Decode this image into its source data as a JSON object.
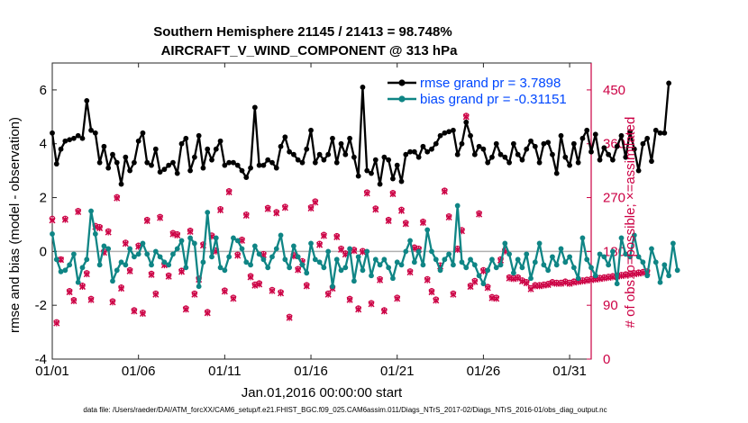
{
  "chart_data": {
    "type": "line",
    "title": "Southern Hemisphere 21145 / 21413 = 98.748%",
    "subtitle": "AIRCRAFT_V_WIND_COMPONENT @ 313 hPa",
    "xlabel": "Jan.01,2016 00:00:00 start",
    "ylabel": "rmse and bias (model - observation)",
    "ylabel_right": "# of obs: o=possible; ×=assimilated",
    "footer": "data file: /Users/raeder/DAI/ATM_forcXX/CAM6_setup/f.e21.FHIST_BGC.f09_025.CAM6assim.011/Diags_NTrS_2017-02/Diags_NTrS_2016-01/obs_diag_output.nc",
    "xlim": [
      0.0,
      31.25
    ],
    "ylim": [
      -4,
      7
    ],
    "ylim_right": [
      0,
      495
    ],
    "xticks": [
      0,
      5,
      10,
      15,
      20,
      25,
      30
    ],
    "xtick_labels": [
      "01/01",
      "01/06",
      "01/11",
      "01/16",
      "01/21",
      "01/26",
      "01/31"
    ],
    "yticks": [
      -4,
      -2,
      0,
      2,
      4,
      6
    ],
    "ytick_labels": [
      "-4",
      "-2",
      "0",
      "2",
      "4",
      "6"
    ],
    "yticks_right": [
      0,
      90,
      180,
      270,
      360,
      450
    ],
    "ytick_labels_right": [
      "0",
      "90",
      "180",
      "270",
      "360",
      "450"
    ],
    "legend_position": "top-right",
    "x_step_days": 0.25,
    "series": [
      {
        "name": "rmse grand pr = 3.7898",
        "color": "#000000",
        "axis": "left",
        "values": [
          4.4,
          3.25,
          3.8,
          4.1,
          4.15,
          4.2,
          4.3,
          4.2,
          5.6,
          4.5,
          4.4,
          3.3,
          3.9,
          3.1,
          3.6,
          3.3,
          2.5,
          3.5,
          3.0,
          3.3,
          4.1,
          4.4,
          3.3,
          3.2,
          3.8,
          2.95,
          3.05,
          3.2,
          3.3,
          2.9,
          4.0,
          4.2,
          3.0,
          3.5,
          4.3,
          3.1,
          3.8,
          3.4,
          3.8,
          4.1,
          3.2,
          3.3,
          3.3,
          3.2,
          3.0,
          2.75,
          3.1,
          5.35,
          3.2,
          3.2,
          3.4,
          3.3,
          3.1,
          3.9,
          4.25,
          3.7,
          3.6,
          3.4,
          3.3,
          3.8,
          4.5,
          3.3,
          3.6,
          3.4,
          3.6,
          4.2,
          3.3,
          4.0,
          3.6,
          4.2,
          3.5,
          2.8,
          6.1,
          3.0,
          2.9,
          3.4,
          2.5,
          3.5,
          3.4,
          2.7,
          3.2,
          2.6,
          3.6,
          3.7,
          3.7,
          3.5,
          3.9,
          3.7,
          3.8,
          4.0,
          4.3,
          4.4,
          4.45,
          4.5,
          3.6,
          4.0,
          4.8,
          4.3,
          3.6,
          3.9,
          3.8,
          3.3,
          3.5,
          4.0,
          3.6,
          3.5,
          3.3,
          4.0,
          3.6,
          3.4,
          3.8,
          4.1,
          3.9,
          3.3,
          4.0,
          4.05,
          3.6,
          2.9,
          4.3,
          3.5,
          3.2,
          4.0,
          3.3,
          4.2,
          4.5,
          3.7,
          4.35,
          3.4,
          3.85,
          3.6,
          3.4,
          3.9,
          4.3,
          3.5,
          4.45,
          3.8,
          3.0,
          4.0,
          4.2,
          3.35,
          4.5,
          4.4,
          4.4,
          6.25
        ]
      },
      {
        "name": "bias grand pr = -0.31151",
        "color": "#0f8585",
        "axis": "left",
        "values": [
          0.65,
          -0.3,
          -0.75,
          -0.7,
          -0.5,
          -0.1,
          -1.15,
          -0.6,
          -0.3,
          1.5,
          0.65,
          -0.5,
          0.2,
          0.1,
          -1.1,
          -0.7,
          -0.4,
          -0.5,
          0.1,
          -0.2,
          -0.1,
          0.3,
          -0.1,
          -0.5,
          0.0,
          -0.2,
          -0.4,
          -0.5,
          -0.1,
          0.1,
          0.4,
          -0.6,
          0.5,
          0.3,
          -1.3,
          -0.4,
          1.45,
          -0.2,
          0.5,
          -0.6,
          -0.7,
          -0.2,
          0.5,
          0.4,
          0.1,
          -0.4,
          -0.5,
          0.2,
          -0.1,
          -0.3,
          -0.6,
          -0.2,
          0.1,
          0.6,
          -0.3,
          -0.6,
          0.2,
          -0.2,
          -0.5,
          -0.8,
          0.3,
          -0.3,
          -0.4,
          -0.6,
          0.0,
          -1.3,
          -0.3,
          -0.7,
          -0.6,
          0.1,
          -1.1,
          -0.2,
          -0.7,
          0.0,
          -0.9,
          -0.3,
          -0.5,
          -0.3,
          -0.6,
          -1.0,
          -0.4,
          -0.5,
          0.0,
          0.4,
          -0.4,
          0.0,
          -0.5,
          0.8,
          0.0,
          -0.3,
          -0.7,
          -0.3,
          -0.1,
          -0.5,
          1.7,
          -0.4,
          -0.6,
          -0.3,
          -0.5,
          -0.9,
          -1.2,
          -0.7,
          -0.3,
          -0.6,
          -0.5,
          0.3,
          -0.1,
          -0.8,
          -0.3,
          -0.6,
          -0.1,
          -1.0,
          -0.4,
          0.3,
          -0.5,
          -0.7,
          -0.2,
          -0.5,
          0.1,
          -0.4,
          -0.2,
          -0.6,
          -1.0,
          0.5,
          -0.3,
          -0.6,
          -0.9,
          -0.1,
          -0.2,
          -0.5,
          0.0,
          -1.2,
          0.5,
          -0.1,
          -0.2,
          0.6,
          -0.2,
          -0.4,
          -0.9,
          0.1,
          -0.4,
          -1.15,
          -0.5,
          -0.9,
          0.3,
          -0.7
        ]
      },
      {
        "name": "possible",
        "color": "#cc0044",
        "axis": "right",
        "marker": "o",
        "values": [
          235,
          62,
          167,
          235,
          114,
          99,
          248,
          123,
          144,
          101,
          223,
          221,
          180,
          214,
          97,
          271,
          120,
          195,
          149,
          82,
          190,
          78,
          233,
          143,
          110,
          238,
          159,
          140,
          211,
          209,
          148,
          85,
          215,
          110,
          135,
          192,
          79,
          207,
          182,
          251,
          115,
          281,
          103,
          175,
          200,
          242,
          139,
          125,
          127,
          176,
          253,
          116,
          246,
          112,
          255,
          71,
          174,
          151,
          164,
          124,
          254,
          264,
          193,
          208,
          110,
          120,
          206,
          185,
          177,
          101,
          183,
          85,
          181,
          279,
          94,
          252,
          134,
          82,
          233,
          278,
          103,
          250,
          228,
          147,
          187,
          185,
          230,
          134,
          114,
          100,
          157,
          282,
          239,
          110,
          185,
          216,
          407,
          123,
          131,
          244,
          149,
          121,
          104,
          103,
          167,
          182,
          137,
          136,
          137,
          132,
          129,
          119,
          124,
          124,
          125,
          126,
          129,
          128,
          128,
          130,
          128,
          130,
          131,
          132,
          133,
          134,
          135,
          136,
          137,
          138,
          139,
          140,
          141,
          142,
          143,
          144,
          145,
          146,
          147
        ]
      },
      {
        "name": "assimilated",
        "color": "#cc0044",
        "axis": "right",
        "marker": "x",
        "values": [
          232,
          60,
          166,
          233,
          112,
          97,
          246,
          121,
          142,
          99,
          221,
          219,
          178,
          212,
          95,
          269,
          118,
          193,
          147,
          80,
          188,
          76,
          231,
          141,
          108,
          236,
          157,
          138,
          209,
          207,
          146,
          83,
          213,
          108,
          133,
          190,
          77,
          205,
          180,
          249,
          113,
          279,
          101,
          173,
          198,
          240,
          137,
          123,
          125,
          174,
          251,
          114,
          244,
          110,
          253,
          69,
          172,
          149,
          162,
          122,
          252,
          262,
          191,
          206,
          108,
          118,
          204,
          183,
          175,
          99,
          181,
          83,
          179,
          277,
          92,
          250,
          132,
          80,
          231,
          276,
          101,
          248,
          226,
          145,
          185,
          183,
          228,
          132,
          112,
          98,
          155,
          280,
          237,
          108,
          183,
          214,
          405,
          121,
          129,
          242,
          147,
          119,
          102,
          101,
          165,
          180,
          135,
          134,
          135,
          130,
          127,
          117,
          122,
          122,
          123,
          124,
          127,
          126,
          126,
          128,
          126,
          128,
          129,
          130,
          131,
          132,
          133,
          134,
          135,
          136,
          137,
          138,
          139,
          140,
          141,
          142,
          143,
          144,
          145
        ]
      }
    ]
  }
}
